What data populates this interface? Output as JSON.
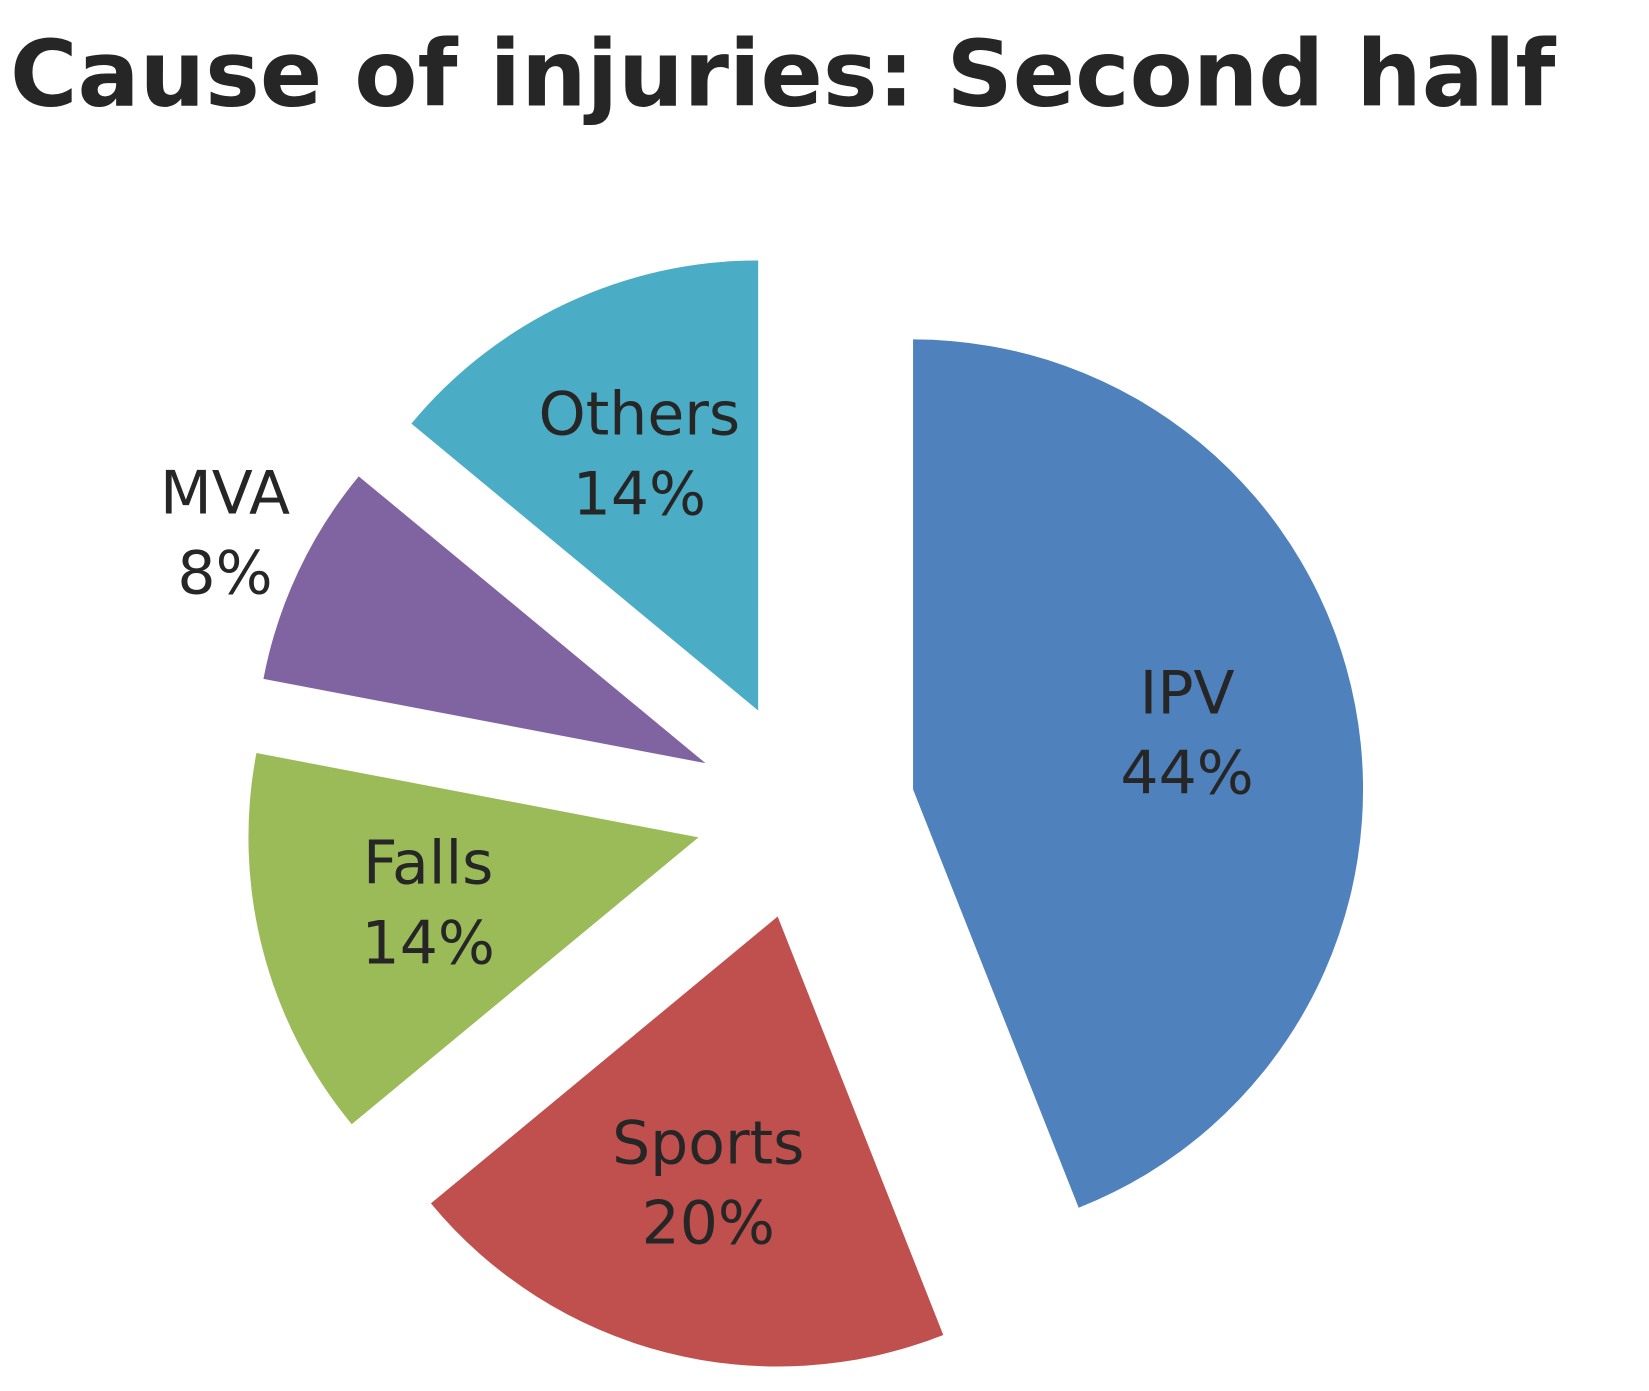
{
  "chart_data": {
    "type": "pie",
    "title": "Cause of injuries: Second half",
    "categories": [
      "IPV",
      "Sports",
      "Falls",
      "MVA",
      "Others"
    ],
    "values": [
      44,
      20,
      14,
      8,
      14
    ],
    "value_labels": [
      "44%",
      "20%",
      "14%",
      "8%",
      "14%"
    ],
    "colors": [
      "#4f81bd",
      "#c0504d",
      "#9bbb59",
      "#8064a2",
      "#4bacc6"
    ]
  }
}
